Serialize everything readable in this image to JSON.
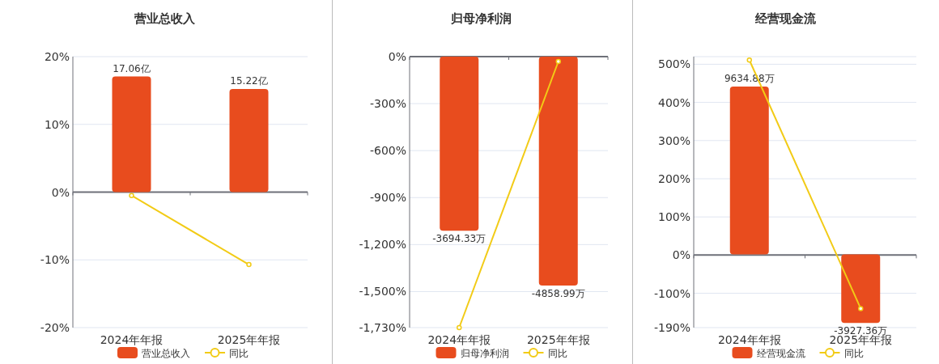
{
  "chart_data": [
    {
      "type": "bar",
      "title": "营业总收入",
      "categories": [
        "2024年年报",
        "2025年年报"
      ],
      "series": [
        {
          "name": "营业总收入",
          "color": "#e84c1e",
          "values": [
            17.06,
            15.22
          ],
          "value_labels": [
            "17.06亿",
            "15.22亿"
          ],
          "axis": "y2"
        },
        {
          "name": "同比",
          "type": "line",
          "color": "#f2cb16",
          "values": [
            -0.5,
            -10.7
          ]
        }
      ],
      "ylim": [
        -20,
        20
      ],
      "yticks": [
        {
          "value": -20,
          "label": "-20%"
        },
        {
          "value": -10,
          "label": "-10%"
        },
        {
          "value": 0,
          "label": "0%"
        },
        {
          "value": 10,
          "label": "10%"
        },
        {
          "value": 20,
          "label": "20%"
        }
      ],
      "y2lim": [
        -20,
        20
      ],
      "grid": "y",
      "legend": "bottom",
      "marker": "circle"
    },
    {
      "type": "bar",
      "title": "归母净利润",
      "categories": [
        "2024年年报",
        "2025年年报"
      ],
      "series": [
        {
          "name": "归母净利润",
          "color": "#e84c1e",
          "values": [
            -3694.33,
            -4858.99
          ],
          "value_labels": [
            "-3694.33万",
            "-4858.99万"
          ],
          "axis": "y2"
        },
        {
          "name": "同比",
          "type": "line",
          "color": "#f2cb16",
          "values": [
            -1730,
            -31
          ]
        }
      ],
      "ylim": [
        -1730,
        0
      ],
      "yticks": [
        {
          "value": -1730,
          "label": "-1,730%"
        },
        {
          "value": -1500,
          "label": "-1,500%"
        },
        {
          "value": -1200,
          "label": "-1,200%"
        },
        {
          "value": -900,
          "label": "-900%"
        },
        {
          "value": -600,
          "label": "-600%"
        },
        {
          "value": -300,
          "label": "-300%"
        },
        {
          "value": 0,
          "label": "0%"
        }
      ],
      "y2lim": [
        -5750,
        0
      ],
      "grid": "y",
      "legend": "bottom",
      "marker": "circle"
    },
    {
      "type": "bar",
      "title": "经营现金流",
      "categories": [
        "2024年年报",
        "2025年年报"
      ],
      "series": [
        {
          "name": "经营现金流",
          "color": "#e84c1e",
          "values": [
            9634.88,
            -3927.36
          ],
          "value_labels": [
            "9634.88万",
            "-3927.36万"
          ],
          "axis": "y2"
        },
        {
          "name": "同比",
          "type": "line",
          "color": "#f2cb16",
          "values": [
            511,
            -140
          ]
        }
      ],
      "ylim": [
        -190,
        520
      ],
      "yticks": [
        {
          "value": -190,
          "label": "-190%"
        },
        {
          "value": -100,
          "label": "-100%"
        },
        {
          "value": 0,
          "label": "0%"
        },
        {
          "value": 100,
          "label": "100%"
        },
        {
          "value": 200,
          "label": "200%"
        },
        {
          "value": 300,
          "label": "300%"
        },
        {
          "value": 400,
          "label": "400%"
        },
        {
          "value": 500,
          "label": "500%"
        },
        {
          "value": 520,
          "label": null
        }
      ],
      "y2lim": [
        -4200,
        11350
      ],
      "grid": "y",
      "legend": "bottom",
      "marker": "circle"
    }
  ]
}
